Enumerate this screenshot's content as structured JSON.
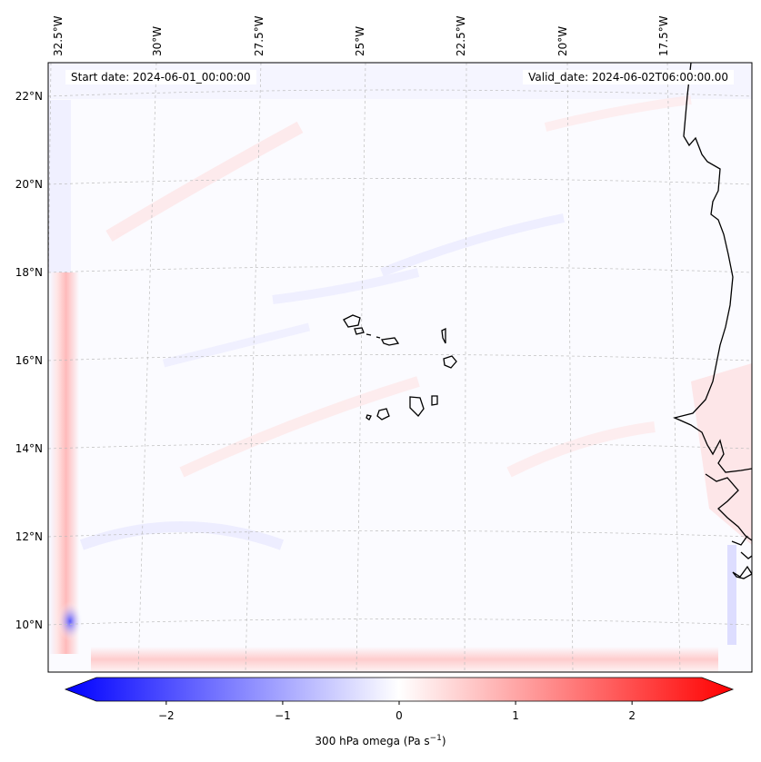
{
  "map": {
    "start_date": "Start date: 2024-06-01_00:00:00",
    "valid_date": "Valid_date: 2024-06-02T06:00:00.00",
    "lon_labels": [
      "32.5°W",
      "30°W",
      "27.5°W",
      "25°W",
      "22.5°W",
      "20°W",
      "17.5°W"
    ],
    "lat_labels": [
      "22°N",
      "20°N",
      "18°N",
      "16°N",
      "14°N",
      "12°N",
      "10°N"
    ],
    "field": "300 hPa omega",
    "colormap": "bwr",
    "gridlines": true,
    "coastline_color": "#000000"
  },
  "colorbar": {
    "label_main": "300 hPa omega (Pa s",
    "label_exp": "−1",
    "label_close": ")",
    "ticks": [
      "−2",
      "−1",
      "0",
      "1",
      "2"
    ],
    "tick_values": [
      -2,
      -1,
      0,
      1,
      2
    ],
    "range": [
      -2.6,
      2.6
    ],
    "extend": "both",
    "min_color": "#0000ff",
    "mid_color": "#ffffff",
    "max_color": "#ff0000"
  }
}
